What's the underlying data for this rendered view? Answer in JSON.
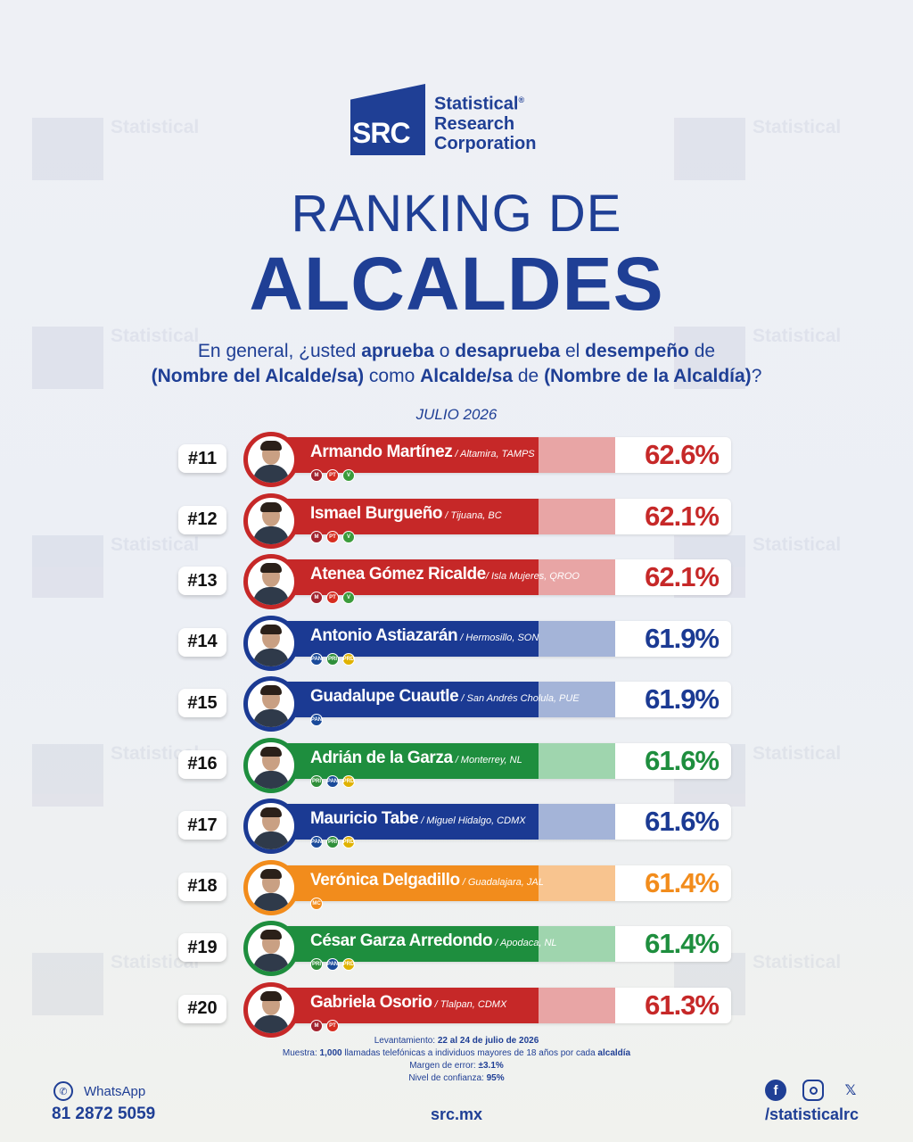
{
  "brand": {
    "abbr": "SRC",
    "name_lines": [
      "Statistical",
      "Research",
      "Corporation"
    ],
    "registered": "®",
    "color": "#1f3f95"
  },
  "title": {
    "line1": "RANKING DE",
    "line2": "ALCALDES"
  },
  "question": {
    "parts": [
      {
        "t": "En general, ¿usted ",
        "b": false
      },
      {
        "t": "aprueba",
        "b": true
      },
      {
        "t": " o ",
        "b": false
      },
      {
        "t": "desaprueba",
        "b": true
      },
      {
        "t": " el ",
        "b": false
      },
      {
        "t": "desempeño",
        "b": true
      },
      {
        "t": " de",
        "b": false
      }
    ],
    "parts2": [
      {
        "t": "(Nombre del Alcalde/sa)",
        "b": true
      },
      {
        "t": " como ",
        "b": false
      },
      {
        "t": "Alcalde/sa",
        "b": true
      },
      {
        "t": " de ",
        "b": false
      },
      {
        "t": "(Nombre de la Alcaldía)",
        "b": true
      },
      {
        "t": "?",
        "b": false
      }
    ]
  },
  "month": "JULIO 2026",
  "colors": {
    "red": "#c62828",
    "red_light": "#e8a5a5",
    "blue": "#1b3a93",
    "blue_light": "#a4b4d8",
    "green": "#1e8e3e",
    "green_light": "#9fd5ae",
    "orange": "#f28c1c",
    "orange_light": "#f8c48f"
  },
  "rows": [
    {
      "rank": "#11",
      "name": "Armando Martínez",
      "place": " / Altamira, TAMPS",
      "pct": "62.6%",
      "value": 62.6,
      "color": "red",
      "parties": [
        "morena-logo",
        "pt-logo",
        "pvem-logo"
      ],
      "party_labels": [
        "M",
        "PT",
        "V"
      ]
    },
    {
      "rank": "#12",
      "name": "Ismael Burgueño",
      "place": " / Tijuana, BC",
      "pct": "62.1%",
      "value": 62.1,
      "color": "red",
      "parties": [
        "morena-logo",
        "pt-logo",
        "pvem-logo"
      ],
      "party_labels": [
        "M",
        "PT",
        "V"
      ]
    },
    {
      "rank": "#13",
      "name": "Atenea Gómez Ricalde",
      "place": "/ Isla Mujeres, QROO",
      "pct": "62.1%",
      "value": 62.1,
      "color": "red",
      "parties": [
        "morena-logo",
        "pt-logo",
        "pvem-logo"
      ],
      "party_labels": [
        "M",
        "PT",
        "V"
      ]
    },
    {
      "rank": "#14",
      "name": "Antonio Astiazarán",
      "place": " / Hermosillo, SON",
      "pct": "61.9%",
      "value": 61.9,
      "color": "blue",
      "parties": [
        "pan-logo",
        "pri-logo",
        "prd-logo"
      ],
      "party_labels": [
        "PAN",
        "PRI",
        "PRD"
      ]
    },
    {
      "rank": "#15",
      "name": "Guadalupe Cuautle",
      "place": " / San Andrés Cholula, PUE",
      "pct": "61.9%",
      "value": 61.9,
      "color": "blue",
      "parties": [
        "pan-logo"
      ],
      "party_labels": [
        "PAN"
      ]
    },
    {
      "rank": "#16",
      "name": "Adrián de la Garza",
      "place": " / Monterrey, NL",
      "pct": "61.6%",
      "value": 61.6,
      "color": "green",
      "parties": [
        "pri-logo",
        "pan-logo",
        "prd-logo"
      ],
      "party_labels": [
        "PRI",
        "PAN",
        "PRD"
      ]
    },
    {
      "rank": "#17",
      "name": "Mauricio Tabe",
      "place": " / Miguel Hidalgo, CDMX",
      "pct": "61.6%",
      "value": 61.6,
      "color": "blue",
      "parties": [
        "pan-logo",
        "pri-logo",
        "prd-logo"
      ],
      "party_labels": [
        "PAN",
        "PRI",
        "PRD"
      ]
    },
    {
      "rank": "#18",
      "name": "Verónica Delgadillo",
      "place": " / Guadalajara, JAL",
      "pct": "61.4%",
      "value": 61.4,
      "color": "orange",
      "parties": [
        "mc-logo"
      ],
      "party_labels": [
        "MC"
      ]
    },
    {
      "rank": "#19",
      "name": "César Garza Arredondo",
      "place": " / Apodaca, NL",
      "pct": "61.4%",
      "value": 61.4,
      "color": "green",
      "parties": [
        "pri-logo",
        "pan-logo",
        "prd-logo"
      ],
      "party_labels": [
        "PRI",
        "PAN",
        "PRD"
      ]
    },
    {
      "rank": "#20",
      "name": "Gabriela Osorio",
      "place": " / Tlalpan, CDMX",
      "pct": "61.3%",
      "value": 61.3,
      "color": "red",
      "parties": [
        "morena-logo",
        "pt-logo"
      ],
      "party_labels": [
        "M",
        "PT"
      ]
    }
  ],
  "footnotes": {
    "l1_label": "Levantamiento: ",
    "l1_value": "22 al 24 de julio de 2026",
    "l2_label": "Muestra: ",
    "l2_value": "1,000",
    "l2_mid": " llamadas telefónicas a individuos mayores de 18 años por cada ",
    "l2_end": "alcaldía",
    "l3_label": "Margen de error: ",
    "l3_value": "±3.1%",
    "l4_label": "Nivel de confianza: ",
    "l4_value": "95%"
  },
  "footer": {
    "whatsapp_label": "WhatsApp",
    "phone": "81 2872 5059",
    "site": "src.mx",
    "handle": "/statisticalrc",
    "icons": [
      "whatsapp-icon",
      "facebook-icon",
      "instagram-icon",
      "x-icon"
    ]
  }
}
